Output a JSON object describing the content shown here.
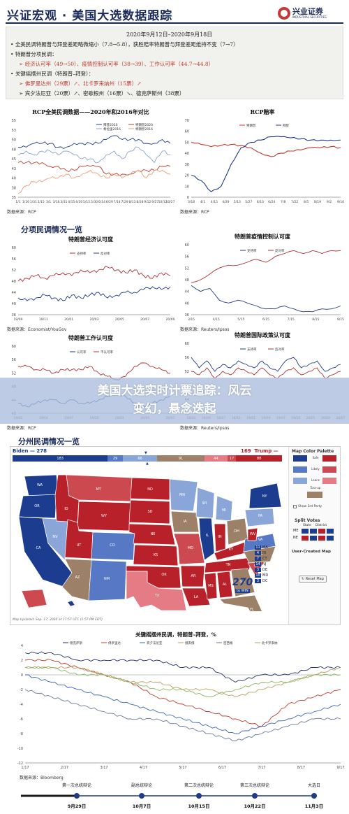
{
  "header": {
    "title": "兴证宏观 · 美国大选数据跟踪",
    "logo_name": "兴业证券",
    "logo_sub": "INDUSTRIAL SECURITIES"
  },
  "summary": {
    "date": "2020年9月12日–2020年9月18日",
    "line1": "全美民调特朗普与拜登差距略微缩小（7.8→5.8），获胜赔率特朗普与拜登差距维持不变（7→7）",
    "line2": "特朗普分项民调：",
    "line3_a": "经济认可率（49→50）",
    "line3_b": "、疫情控制认可率（38→39）",
    "line3_c": "、工作认可率（44.7→44.8）",
    "line4": "关键摇摆州民调（特朗普–拜登）：",
    "line5_a": "佛罗里达州（29票）",
    "line5_b": "、北卡罗来纳州（15票）",
    "line6_a": "宾夕法尼亚（20票）",
    "line6_b": "、密歇根州（16票）",
    "line6_c": "、德克萨斯州（38票）"
  },
  "section_titles": {
    "subpolls": "分项民调情况一览",
    "states": "分州民调情况一览"
  },
  "banner": {
    "line1": "美国大选实时计票追踪：风云",
    "line2": "变幻，悬念迭起"
  },
  "charts": {
    "rcp": {
      "title": "RCP全美民调数据——2020年和2016年对比",
      "source": "数据来源：RCP",
      "legend": [
        "拜登2020",
        "特朗普2020",
        "希拉里2016",
        "特朗普2016"
      ],
      "yticks": [
        "55",
        "53",
        "50",
        "48",
        "45",
        "43",
        "40",
        "38",
        "35"
      ],
      "xticks": [
        "1/1",
        "1/16",
        "1/31",
        "2/15",
        "3/1",
        "3/16",
        "3/31",
        "4/15",
        "4/30",
        "5/15",
        "5/30",
        "6/14",
        "6/29",
        "7/14",
        "7/29",
        "8/13",
        "8/28",
        "9/12",
        "9/27",
        "10/12",
        "10/27"
      ],
      "ylim": [
        35,
        55
      ]
    },
    "odds": {
      "title": "RCP赔率",
      "source": "数据来源：RCP",
      "legend": [
        "特朗普",
        "拜登"
      ],
      "yticks": [
        "70",
        "60",
        "50",
        "40",
        "30",
        "20",
        "10",
        "0"
      ],
      "xticks": [
        "3/18",
        "4/1",
        "4/15",
        "4/29",
        "5/13",
        "5/27",
        "6/10",
        "6/24",
        "7/8",
        "7/22",
        "8/5",
        "8/19",
        "9/2",
        "9/16"
      ],
      "ylim": [
        0,
        70
      ]
    },
    "econ": {
      "title": "特朗普经济认可度",
      "source": "数据来源：Economist/YouGov",
      "legend": [
        "支持率",
        "反对率"
      ],
      "yticks": [
        "60",
        "56",
        "52",
        "48",
        "44",
        "40",
        "36"
      ],
      "xticks": [
        "19/09",
        "19/11",
        "20/01",
        "20/03",
        "20/05",
        "20/07",
        "20/09"
      ],
      "ylim": [
        36,
        60
      ]
    },
    "covid": {
      "title": "特朗普疫情控制认可度",
      "source": "数据来源：Reuters/Ipsos",
      "legend": [
        "支持率",
        "反对率"
      ],
      "yticks": [
        "60",
        "56",
        "52",
        "48",
        "44",
        "40",
        "36"
      ],
      "xticks": [
        "3/15",
        "4/15",
        "5/15",
        "6/15",
        "7/15",
        "8/15",
        "9/15"
      ],
      "ylim": [
        36,
        60
      ]
    },
    "work": {
      "title": "特朗普工作认可度",
      "source": "数据来源：RCP",
      "legend": [
        "认可率",
        "不认可率"
      ],
      "yticks": [
        "60",
        "56",
        "52",
        "48",
        "44",
        "40"
      ],
      "xticks": [
        "19/01",
        "19/04",
        "19/07",
        "19/10",
        "20/01",
        "20/04",
        "20/07"
      ],
      "ylim": [
        40,
        60
      ]
    },
    "intl": {
      "title": "特朗普国际政策认可度",
      "source": "数据来源：Reuters/Ipsos",
      "legend": [
        "支持率",
        "反对率"
      ],
      "yticks": [
        "60",
        "56",
        "52",
        "48",
        "44",
        "40"
      ],
      "xticks": [
        "18/01",
        "18/04",
        "18/07",
        "18/10",
        "19/01",
        "19/04",
        "19/07",
        "19/10",
        "20/01",
        "20/04",
        "20/07"
      ],
      "ylim": [
        40,
        60
      ]
    },
    "swing": {
      "title": "关键摇摆州民调，特朗普–拜登，%",
      "source": "数据来源：Bloomberg",
      "legend": [
        "德克萨斯",
        "佛罗里达",
        "宾夕法尼亚",
        "俄亥俄",
        "密西根",
        "北卡罗来纳"
      ],
      "yticks": [
        "4",
        "2",
        "0",
        "-2",
        "-4",
        "-6",
        "-8",
        "-10",
        "-12"
      ],
      "xticks": [
        "1/17",
        "2/17",
        "3/17",
        "4/17",
        "5/17",
        "6/17",
        "7/17",
        "8/17",
        "9/17"
      ],
      "ylim": [
        -12,
        4
      ]
    }
  },
  "chart_data": [
    {
      "type": "line",
      "title": "RCP全美民调数据——2020年和2016年对比",
      "ylim": [
        35,
        55
      ],
      "series": [
        {
          "name": "拜登2020",
          "values": [
            48,
            48,
            49,
            49,
            49,
            48,
            48,
            49,
            49,
            49,
            49,
            50,
            51,
            50,
            50,
            50,
            49,
            49,
            50,
            49
          ]
        },
        {
          "name": "特朗普2020",
          "values": [
            44,
            44,
            44,
            44,
            43,
            43,
            42,
            42,
            43,
            43,
            43,
            41,
            41,
            41,
            41,
            42,
            42,
            42,
            43,
            43
          ]
        },
        {
          "name": "希拉里2016",
          "values": [
            46,
            47,
            46,
            47,
            47,
            46,
            47,
            46,
            45,
            45,
            44,
            46,
            47,
            45,
            47,
            48,
            46,
            44,
            47,
            46
          ]
        },
        {
          "name": "特朗普2016",
          "values": [
            36,
            38,
            39,
            39,
            40,
            40,
            41,
            40,
            41,
            42,
            41,
            40,
            41,
            40,
            41,
            42,
            40,
            42,
            42,
            41
          ]
        }
      ]
    },
    {
      "type": "line",
      "title": "RCP赔率",
      "ylim": [
        0,
        70
      ],
      "series": [
        {
          "name": "特朗普",
          "values": [
            50,
            48,
            46,
            47,
            48,
            47,
            45,
            40,
            37,
            40,
            42,
            43,
            45,
            45,
            46,
            45
          ]
        },
        {
          "name": "拜登",
          "values": [
            20,
            15,
            5,
            10,
            30,
            45,
            50,
            52,
            55,
            55,
            54,
            53,
            52,
            52,
            52,
            52
          ]
        }
      ]
    },
    {
      "type": "line",
      "title": "特朗普经济认可度",
      "ylim": [
        36,
        60
      ],
      "series": [
        {
          "name": "支持率",
          "values": [
            48,
            49,
            50,
            49,
            50,
            51,
            50,
            52,
            51,
            52,
            53,
            52,
            51,
            52,
            50,
            49,
            51,
            50
          ]
        },
        {
          "name": "反对率",
          "values": [
            42,
            41,
            42,
            43,
            42,
            41,
            43,
            42,
            43,
            44,
            42,
            43,
            44,
            44,
            45,
            46,
            45,
            46
          ]
        }
      ]
    },
    {
      "type": "line",
      "title": "特朗普疫情控制认可度",
      "ylim": [
        36,
        60
      ],
      "series": [
        {
          "name": "支持率",
          "values": [
            46,
            44,
            45,
            41,
            40,
            41,
            40,
            39,
            38,
            38,
            39,
            38,
            37,
            37,
            38,
            38,
            39
          ]
        },
        {
          "name": "反对率",
          "values": [
            47,
            48,
            50,
            52,
            53,
            53,
            54,
            55,
            54,
            56,
            57,
            58,
            57,
            58,
            57,
            58,
            58
          ]
        }
      ]
    },
    {
      "type": "line",
      "title": "特朗普工作认可度",
      "ylim": [
        40,
        60
      ],
      "series": [
        {
          "name": "认可率",
          "values": [
            43,
            42,
            43,
            44,
            44,
            43,
            44,
            43,
            43,
            44,
            45,
            46,
            45,
            43,
            42,
            43,
            44,
            45
          ]
        },
        {
          "name": "不认可率",
          "values": [
            54,
            54,
            53,
            53,
            52,
            53,
            53,
            53,
            54,
            52,
            51,
            50,
            51,
            54,
            55,
            54,
            53,
            52
          ]
        }
      ]
    },
    {
      "type": "line",
      "title": "特朗普国际政策认可度",
      "ylim": [
        40,
        60
      ],
      "series": [
        {
          "name": "支持率",
          "values": [
            56,
            53,
            55,
            52,
            54,
            53,
            55,
            54,
            53,
            55,
            53,
            52,
            55,
            56,
            53,
            54,
            55,
            52,
            53,
            54
          ]
        },
        {
          "name": "反对率",
          "values": [
            52,
            51,
            53,
            50,
            52,
            51,
            53,
            52,
            51,
            53,
            51,
            50,
            52,
            53,
            51,
            52,
            53,
            50,
            51,
            52
          ]
        }
      ]
    },
    {
      "type": "line",
      "title": "关键摇摆州民调，特朗普–拜登，%",
      "ylim": [
        -12,
        4
      ],
      "series": [
        {
          "name": "德克萨斯",
          "values": [
            3,
            3,
            2,
            2,
            2,
            2,
            1,
            1,
            -1,
            0,
            0,
            1,
            1
          ]
        },
        {
          "name": "佛罗里达",
          "values": [
            2,
            2,
            1,
            0,
            -1,
            -3,
            -4,
            -5,
            -6,
            -7,
            -4,
            -3,
            -2
          ]
        },
        {
          "name": "宾夕法尼亚",
          "values": [
            0,
            -1,
            -2,
            -3,
            -4,
            -5,
            -6,
            -7,
            -8,
            -7,
            -6,
            -5,
            -4
          ]
        },
        {
          "name": "俄亥俄",
          "values": [
            1,
            1,
            1,
            0,
            -1,
            -1,
            -2,
            -2,
            -3,
            -2,
            -1,
            0,
            1
          ]
        },
        {
          "name": "密西根",
          "values": [
            -2,
            -3,
            -4,
            -5,
            -6,
            -6,
            -7,
            -8,
            -9,
            -8,
            -7,
            -6,
            -6
          ]
        },
        {
          "name": "北卡罗来纳",
          "values": [
            1,
            1,
            0,
            0,
            -1,
            -2,
            -2,
            -3,
            -2,
            -1,
            -1,
            0,
            0
          ]
        }
      ]
    }
  ],
  "map": {
    "biden_label": "Biden",
    "biden_total": "278",
    "trump_label": "Trump",
    "trump_total": "169",
    "bar_values": [
      "183",
      "29",
      "66",
      "91",
      "44",
      "17",
      "88"
    ],
    "palette_title": "Map Color Palette",
    "palette_items": [
      "Safe",
      "Likely",
      "Leans",
      "Toss-up"
    ],
    "show_third_party": "Show 3rd Party",
    "split_votes": "Split Votes",
    "split_state": "State",
    "split_district": "District",
    "split_rows": [
      "ME",
      "NE"
    ],
    "user_created": "User-Created Map",
    "reset": "Reset Map",
    "updated": "Map Updated: Sep. 17, 2020 at 17:57 UTC (1:57 PM EDT)",
    "logo": "270",
    "logo_sub": "to WIN",
    "small_states": [
      {
        "abbr": "MA",
        "ev": "11"
      },
      {
        "abbr": "RI",
        "ev": "4"
      },
      {
        "abbr": "CT",
        "ev": "7"
      },
      {
        "abbr": "NJ",
        "ev": "14"
      },
      {
        "abbr": "DE",
        "ev": "3"
      },
      {
        "abbr": "MD",
        "ev": "10"
      },
      {
        "abbr": "DC",
        "ev": "3"
      }
    ],
    "state_labels": [
      "WA",
      "OR",
      "CA",
      "ID",
      "NV",
      "UT",
      "AZ",
      "MT",
      "WY",
      "CO",
      "NM",
      "ND",
      "SD",
      "NE",
      "KS",
      "OK",
      "TX",
      "MN",
      "IA",
      "MO",
      "AR",
      "LA",
      "WI",
      "IL",
      "MI",
      "IN",
      "OH",
      "KY",
      "TN",
      "MS",
      "AL",
      "GA",
      "FL",
      "SC",
      "NC",
      "VA",
      "WV",
      "PA",
      "NY",
      "ME"
    ]
  },
  "timeline": {
    "events": [
      {
        "name": "第一次总统辩论",
        "date": "9月29日"
      },
      {
        "name": "副总统辩论",
        "date": "10月7日"
      },
      {
        "name": "第二次总统辩论",
        "date": "10月15日"
      },
      {
        "name": "第三次总统辩论",
        "date": "10月22日"
      },
      {
        "name": "大选日",
        "date": "11月3日"
      }
    ]
  }
}
